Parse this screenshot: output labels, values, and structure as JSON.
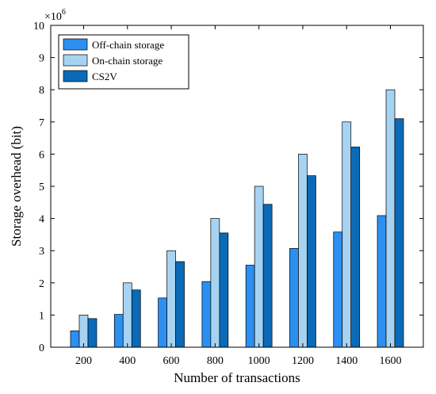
{
  "chart_data": {
    "type": "bar",
    "categories": [
      "200",
      "400",
      "600",
      "800",
      "1000",
      "1200",
      "1400",
      "1600"
    ],
    "series": [
      {
        "name": "Off-chain storage",
        "color": "#2d8ff0",
        "values": [
          0.51,
          1.02,
          1.53,
          2.04,
          2.55,
          3.07,
          3.58,
          4.09
        ]
      },
      {
        "name": "On-chain storage",
        "color": "#a7d3f2",
        "values": [
          1.0,
          2.0,
          3.0,
          4.0,
          5.0,
          6.0,
          7.0,
          8.0
        ]
      },
      {
        "name": "CS2V",
        "color": "#0a6ab7",
        "values": [
          0.89,
          1.78,
          2.66,
          3.55,
          4.44,
          5.33,
          6.22,
          7.1
        ]
      }
    ],
    "xlabel": "Number of transactions",
    "ylabel": "Storage overhead (bit)",
    "y_multiplier_base": "×10",
    "y_multiplier_exp": "6",
    "ylim": [
      0,
      10
    ],
    "yticks": [
      "0",
      "1",
      "2",
      "3",
      "4",
      "5",
      "6",
      "7",
      "8",
      "9",
      "10"
    ],
    "grid": false,
    "legend_position": "top-left"
  }
}
